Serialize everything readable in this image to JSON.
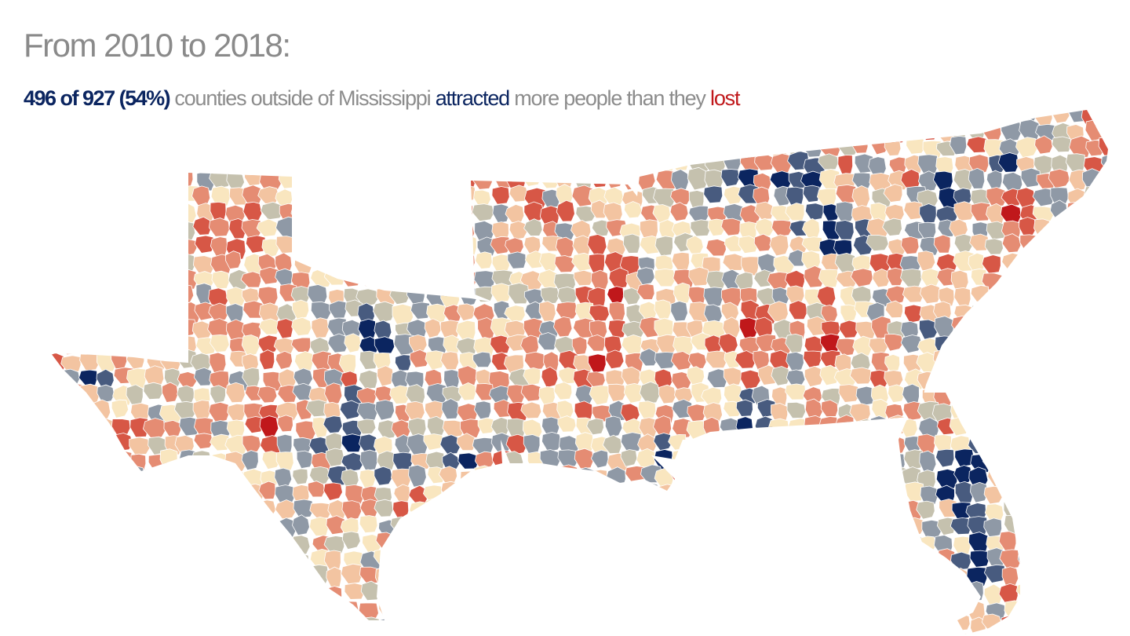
{
  "header": {
    "title": "From 2010 to 2018:",
    "subtitle": {
      "highlight": "496 of 927 (54%)",
      "mid1": " counties outside of Mississippi ",
      "attracted": "attracted",
      "mid2": " more people than they ",
      "lost": "lost"
    }
  },
  "map": {
    "region": "US South counties (Texas through Florida and the Carolinas), Mississippi excluded",
    "counties_attracting": 496,
    "counties_total": 927,
    "percent_attracting": 54,
    "palette": {
      "lost_strong": "#c0181b",
      "lost": "#d75746",
      "lost_mild": "#e58c73",
      "lost_slight": "#f3c4a1",
      "neutral": "#f9e6bf",
      "gain_slight": "#c5c1ae",
      "gain_mild": "#8f99a6",
      "gain": "#485b7f",
      "gain_strong": "#0b2560",
      "no_data": "#d9d6c4"
    }
  }
}
